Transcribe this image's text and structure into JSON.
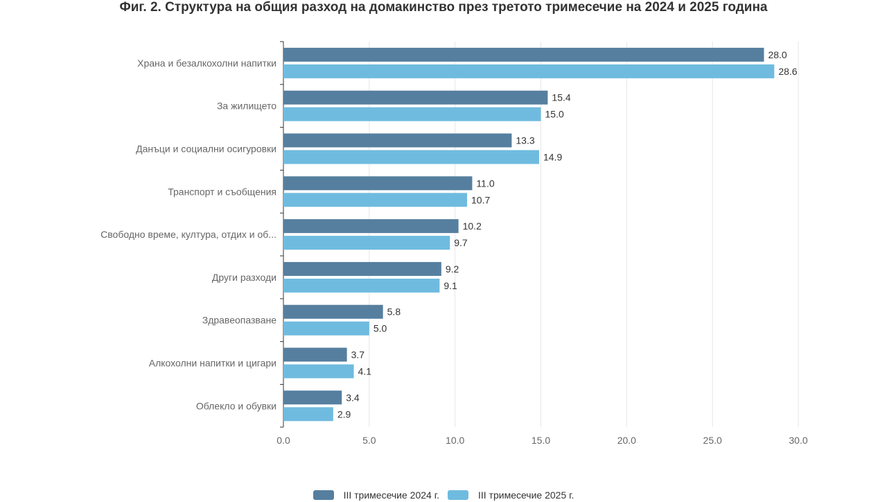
{
  "chart_data": {
    "type": "bar",
    "orientation": "horizontal",
    "title": "Фиг. 2. Структура на общия разход на домакинство през третото тримесечие на 2024 и 2025 година",
    "categories": [
      "Храна и безалкохолни напитки",
      "За жилището",
      "Данъци и социални осигуровки",
      "Транспорт и съобщения",
      "Свободно време, култура, отдих и об...",
      "Други разходи",
      "Здравеопазване",
      "Алкохолни напитки и цигари",
      "Облекло и обувки"
    ],
    "series": [
      {
        "name": "III тримесечие 2024 г.",
        "color": "#567f9f",
        "values": [
          28.0,
          15.4,
          13.3,
          11.0,
          10.2,
          9.2,
          5.8,
          3.7,
          3.4
        ],
        "labels": [
          "28.0",
          "15.4",
          "13.3",
          "11.0",
          "10.2",
          "9.2",
          "5.8",
          "3.7",
          "3.4"
        ]
      },
      {
        "name": "III тримесечие 2025 г.",
        "color": "#6fbbdf",
        "values": [
          28.6,
          15.0,
          14.9,
          10.7,
          9.7,
          9.1,
          5.0,
          4.1,
          2.9
        ],
        "labels": [
          "28.6",
          "15.0",
          "14.9",
          "10.7",
          "9.7",
          "9.1",
          "5.0",
          "4.1",
          "2.9"
        ]
      }
    ],
    "xlim": [
      0,
      30
    ],
    "xticks": [
      "0.0",
      "5.0",
      "10.0",
      "15.0",
      "20.0",
      "25.0",
      "30.0"
    ],
    "grid": true,
    "legend_position": "bottom"
  }
}
